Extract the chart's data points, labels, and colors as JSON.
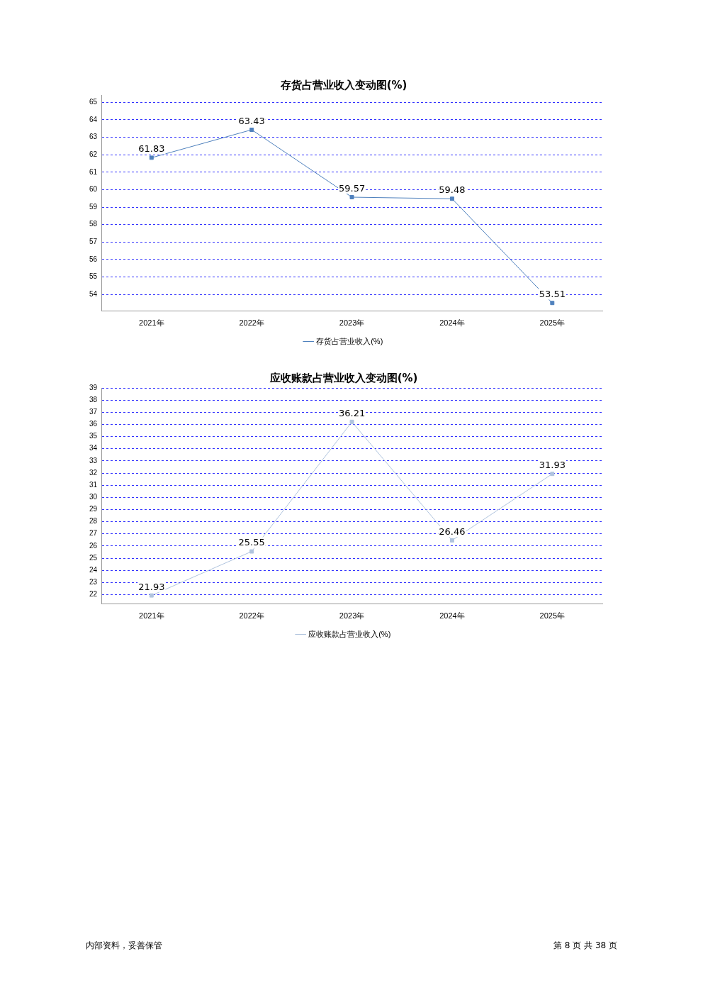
{
  "chart_data": [
    {
      "type": "line",
      "title": "存货占营业收入变动图(%)",
      "categories": [
        "2021年",
        "2022年",
        "2023年",
        "2024年",
        "2025年"
      ],
      "series": [
        {
          "name": "存货占营业收入(%)",
          "color": "#4f81bd",
          "values": [
            61.83,
            63.43,
            59.57,
            59.48,
            53.51
          ]
        }
      ],
      "ylim": [
        53.04,
        65.42
      ],
      "yticks": [
        54,
        55,
        56,
        57,
        58,
        59,
        60,
        61,
        62,
        63,
        64,
        65
      ],
      "grid": "y",
      "legend": "bottom",
      "marker": "square",
      "data_labels": true
    },
    {
      "type": "line",
      "title": "应收账款占营业收入变动图(%)",
      "categories": [
        "2021年",
        "2022年",
        "2023年",
        "2024年",
        "2025年"
      ],
      "series": [
        {
          "name": "应收账款占营业收入(%)",
          "color": "#b0c4de",
          "values": [
            21.93,
            25.55,
            36.21,
            26.46,
            31.93
          ]
        }
      ],
      "ylim": [
        21.22,
        39
      ],
      "yticks": [
        22,
        23,
        24,
        25,
        26,
        27,
        28,
        29,
        30,
        31,
        32,
        33,
        34,
        35,
        36,
        37,
        38,
        39
      ],
      "grid": "y",
      "legend": "bottom",
      "marker": "square",
      "data_labels": true,
      "annotations": [
        "内部资料，妥善保管",
        "第 8 页  共 38 页"
      ]
    }
  ]
}
